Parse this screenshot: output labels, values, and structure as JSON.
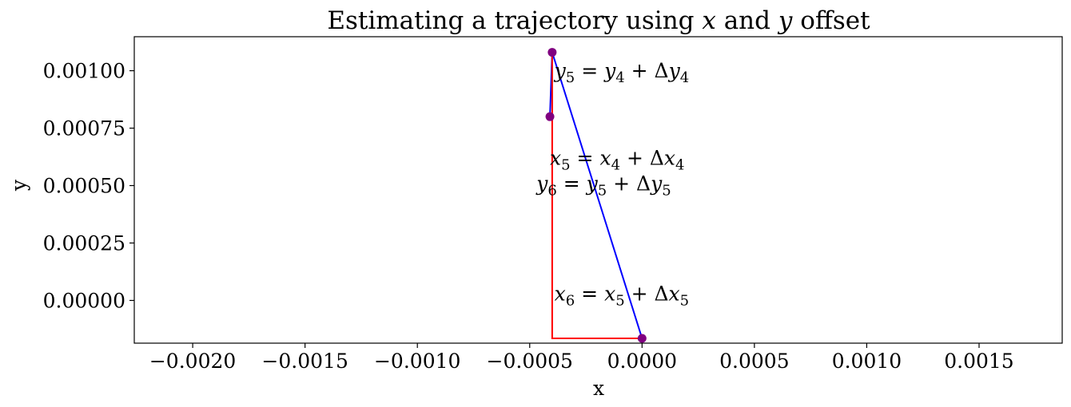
{
  "chart_data": {
    "type": "line",
    "title_parts": [
      "Estimating a trajectory using ",
      "x",
      " and ",
      "y",
      " offset"
    ],
    "xlabel": "x",
    "ylabel": "y",
    "xlim": [
      -0.00226,
      0.00187
    ],
    "ylim": [
      -0.000186,
      0.001148
    ],
    "x_ticks": [
      -0.002,
      -0.0015,
      -0.001,
      -0.0005,
      0.0,
      0.0005,
      0.001,
      0.0015
    ],
    "x_tick_labels": [
      "−0.0020",
      "−0.0015",
      "−0.0010",
      "−0.0005",
      "0.0000",
      "0.0005",
      "0.0010",
      "0.0015"
    ],
    "y_ticks": [
      0.0,
      0.00025,
      0.0005,
      0.00075,
      0.001
    ],
    "y_tick_labels": [
      "0.00000",
      "0.00025",
      "0.00050",
      "0.00075",
      "0.00100"
    ],
    "grid": false,
    "series": [
      {
        "role": "blue-trajectory",
        "color": "#0000ff",
        "x": [
          -0.00041,
          -0.0004,
          0.0
        ],
        "y": [
          0.0008,
          0.00108,
          -0.000165
        ]
      },
      {
        "role": "red-offset",
        "color": "#ff0000",
        "x": [
          -0.0004,
          -0.0004,
          0.0
        ],
        "y": [
          0.00108,
          -0.000165,
          -0.000165
        ]
      }
    ],
    "points": {
      "color": "#800080",
      "x": [
        -0.00041,
        -0.0004,
        0.0
      ],
      "y": [
        0.0008,
        0.00108,
        -0.000165
      ]
    },
    "annotations": [
      {
        "id": "y5",
        "x": -0.00039,
        "y": 0.00097,
        "parts": [
          [
            "y",
            "5"
          ],
          " = ",
          [
            "y",
            "4"
          ],
          " + Δ",
          [
            "y",
            "4"
          ]
        ]
      },
      {
        "id": "x5",
        "x": -0.00041,
        "y": 0.00059,
        "parts": [
          [
            "x",
            "5"
          ],
          " = ",
          [
            "x",
            "4"
          ],
          " + Δ",
          [
            "x",
            "4"
          ]
        ]
      },
      {
        "id": "y6",
        "x": -0.00047,
        "y": 0.00048,
        "parts": [
          [
            "y",
            "6"
          ],
          " = ",
          [
            "y",
            "5"
          ],
          " + Δ",
          [
            "y",
            "5"
          ]
        ]
      },
      {
        "id": "x6",
        "x": -0.00039,
        "y": -6e-07,
        "parts": [
          [
            "x",
            "6"
          ],
          " = ",
          [
            "x",
            "5"
          ],
          " + Δ",
          [
            "x",
            "5"
          ]
        ]
      }
    ]
  }
}
